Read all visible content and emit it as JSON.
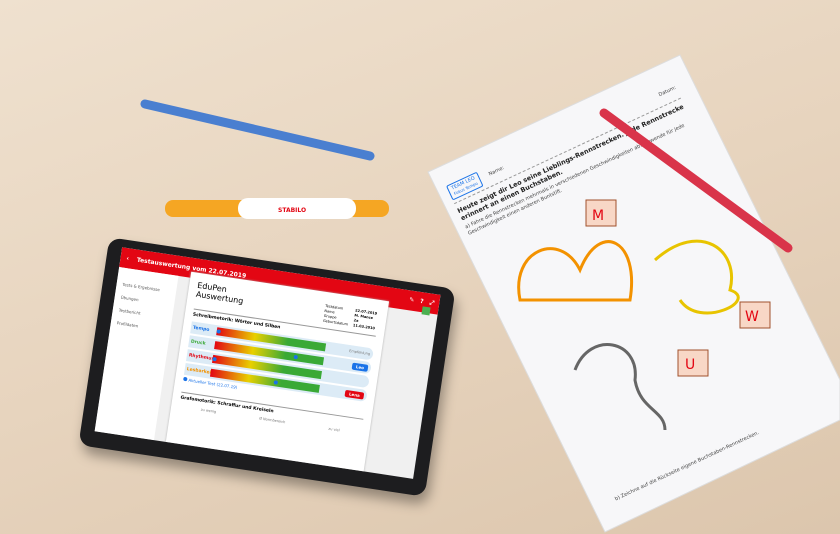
{
  "worksheet": {
    "logo": "TEAM LEO",
    "logo_sub": "Fokus Tempo",
    "name_label": "Name:",
    "date_label": "Datum:",
    "heading": "Heute zeigt dir Leo seine Lieblings-Rennstrecken. Jede Rennstrecke erinnert an einen Buchstaben.",
    "task_a": "a) Fahre die Rennstrecken mehrmals in verschiedenen Geschwindigkeiten ab. Verwende für jede Geschwindigkeit einen anderen Buntstift.",
    "task_b": "b) Zeichne auf die Rückseite eigene Buchstaben-Rennstrecken.",
    "letters": [
      "M",
      "U",
      "W"
    ]
  },
  "pen": {
    "brand": "STABILO"
  },
  "tablet": {
    "title": "Testauswertung vom 22.07.2019",
    "sidebar": [
      "Tests & Ergebnisse",
      "Übungen",
      "Testbericht",
      "Profildaten"
    ],
    "doc": {
      "title_line1": "EduPen",
      "title_line2": "Auswertung",
      "meta": [
        [
          "Testdatum",
          "22.07.2019"
        ],
        [
          "Name",
          "M. Mance"
        ],
        [
          "Gruppe",
          "2a"
        ],
        [
          "Geburtsdatum",
          "11.03.2010"
        ]
      ],
      "section1": "Schreibmotorik: Wörter und Silben",
      "rows": [
        {
          "label": "Tempo",
          "color": "#1a73e8",
          "value": 0.0
        },
        {
          "label": "Druck",
          "color": "#3aa936",
          "value": 0.75
        },
        {
          "label": "Rhythmus",
          "color": "#e30613",
          "value": 0.0
        },
        {
          "label": "Lesbarkeit",
          "color": "#f39200",
          "value": 0.6
        }
      ],
      "legend": "Aktueller Test (22.07.19)",
      "section2": "Grafomotorik: Schraffur und Kreiseln",
      "scale": [
        "zu wenig",
        "Ø Normbereich",
        "zu viel"
      ],
      "recommend": "Empfehlung",
      "coach1": "Leo",
      "coach2": "Lena"
    },
    "accent": "#e30613"
  }
}
